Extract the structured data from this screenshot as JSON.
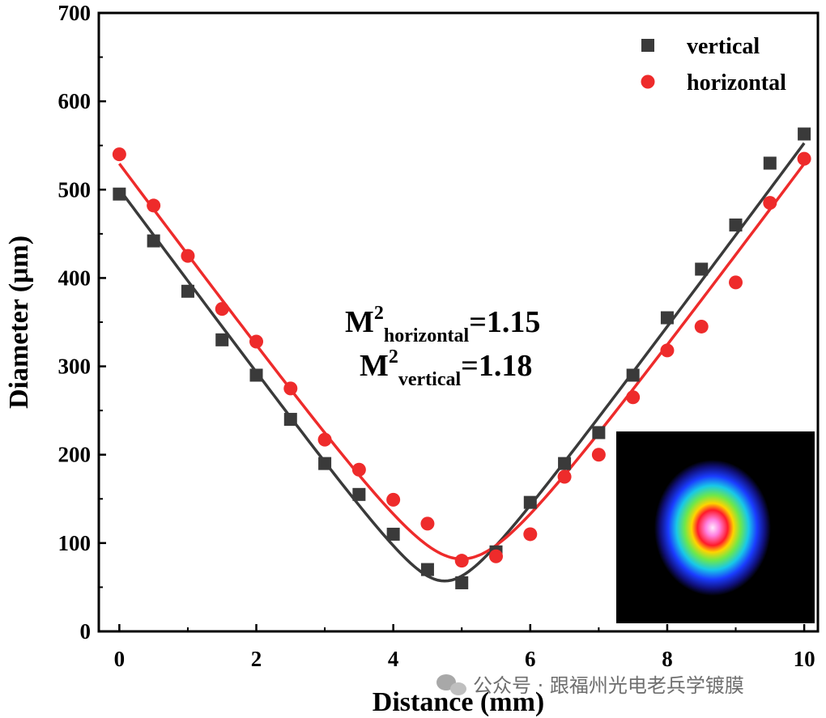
{
  "chart_data": {
    "type": "scatter",
    "xlabel": "Distance (mm)",
    "ylabel": "Diameter (μm)",
    "xlim": [
      -0.3,
      10.2
    ],
    "ylim": [
      0,
      700
    ],
    "xticks": [
      0,
      2,
      4,
      6,
      8,
      10
    ],
    "yticks": [
      0,
      100,
      200,
      300,
      400,
      500,
      600,
      700
    ],
    "grid": false,
    "legend_position": "top-right",
    "series": [
      {
        "name": "vertical",
        "marker": "square",
        "color": "#3a3a3a",
        "x": [
          0,
          0.5,
          1,
          1.5,
          2,
          2.5,
          3,
          3.5,
          4,
          4.5,
          5,
          5.5,
          6,
          6.5,
          7,
          7.5,
          8,
          8.5,
          9,
          9.5,
          10
        ],
        "y": [
          495,
          442,
          385,
          330,
          290,
          240,
          190,
          155,
          110,
          70,
          55,
          90,
          146,
          190,
          225,
          290,
          355,
          410,
          460,
          530,
          563
        ],
        "fit": {
          "d0": 57,
          "z0": 4.75,
          "slope": 104.7
        }
      },
      {
        "name": "horizontal",
        "marker": "circle",
        "color": "#ee2b2b",
        "x": [
          0,
          0.5,
          1,
          1.5,
          2,
          2.5,
          3,
          3.5,
          4,
          4.5,
          5,
          5.5,
          6,
          6.5,
          7,
          7.5,
          8,
          8.5,
          9,
          9.5,
          10
        ],
        "y": [
          540,
          482,
          425,
          365,
          328,
          275,
          217,
          183,
          149,
          122,
          80,
          85,
          110,
          175,
          200,
          265,
          318,
          345,
          395,
          485,
          535
        ],
        "fit": {
          "d0": 82,
          "z0": 5.0,
          "slope": 104.6
        }
      }
    ],
    "annotations": [
      {
        "base": "M",
        "sup": "2",
        "sub": "horizontal",
        "value": "=1.15"
      },
      {
        "base": "M",
        "sup": "2",
        "sub": "vertical",
        "value": "=1.18"
      }
    ]
  },
  "inset": {
    "name": "beam-profile-image",
    "background": "#000000"
  },
  "watermark": {
    "text": "公众号 · 跟福州光电老兵学镀膜"
  }
}
